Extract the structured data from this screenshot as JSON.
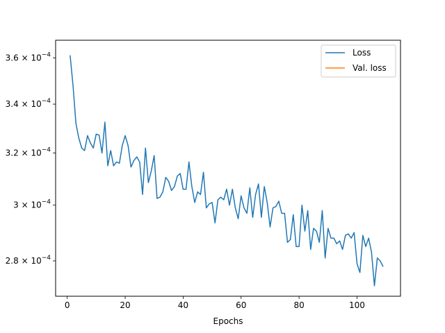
{
  "chart_data": {
    "type": "line",
    "title": "",
    "xlabel": "Epochs",
    "ylabel": "",
    "yscale": "log",
    "xlim": [
      -4,
      115
    ],
    "ylim": [
      0.000268,
      0.000368
    ],
    "x_ticks": [
      0,
      20,
      40,
      60,
      80,
      100
    ],
    "y_ticks": [
      {
        "value": 0.00028,
        "mantissa": "2.8",
        "exponent": "-4"
      },
      {
        "value": 0.0003,
        "mantissa": "3",
        "exponent": "-4"
      },
      {
        "value": 0.00032,
        "mantissa": "3.2",
        "exponent": "-4"
      },
      {
        "value": 0.00034,
        "mantissa": "3.4",
        "exponent": "-4"
      },
      {
        "value": 0.00036,
        "mantissa": "3.6",
        "exponent": "-4"
      }
    ],
    "grid": false,
    "legend_position": "top-right",
    "series": [
      {
        "name": "Loss",
        "color": "#1f77b4",
        "x": [
          1,
          2,
          3,
          4,
          5,
          6,
          7,
          8,
          9,
          10,
          11,
          12,
          13,
          14,
          15,
          16,
          17,
          18,
          19,
          20,
          21,
          22,
          23,
          24,
          25,
          26,
          27,
          28,
          29,
          30,
          31,
          32,
          33,
          34,
          35,
          36,
          37,
          38,
          39,
          40,
          41,
          42,
          43,
          44,
          45,
          46,
          47,
          48,
          49,
          50,
          51,
          52,
          53,
          54,
          55,
          56,
          57,
          58,
          59,
          60,
          61,
          62,
          63,
          64,
          65,
          66,
          67,
          68,
          69,
          70,
          71,
          72,
          73,
          74,
          75,
          76,
          77,
          78,
          79,
          80,
          81,
          82,
          83,
          84,
          85,
          86,
          87,
          88,
          89,
          90,
          91,
          92,
          93,
          94,
          95,
          96,
          97,
          98,
          99,
          100,
          101,
          102,
          103,
          104,
          105,
          106,
          107,
          108,
          109
        ],
        "y": [
          0.0003612,
          0.000348,
          0.000332,
          0.000326,
          0.000322,
          0.000321,
          0.000327,
          0.000324,
          0.000322,
          0.0003276,
          0.0003272,
          0.00032,
          0.0003325,
          0.000315,
          0.000321,
          0.000315,
          0.0003165,
          0.000316,
          0.000323,
          0.000327,
          0.000323,
          0.0003145,
          0.000317,
          0.0003185,
          0.0003165,
          0.000304,
          0.000322,
          0.0003085,
          0.000313,
          0.000319,
          0.0003025,
          0.000303,
          0.000305,
          0.0003105,
          0.000309,
          0.0003055,
          0.000307,
          0.000311,
          0.000312,
          0.000306,
          0.000306,
          0.0003165,
          0.000307,
          0.000301,
          0.000305,
          0.000304,
          0.0003125,
          0.000299,
          0.0003005,
          0.000301,
          0.0002935,
          0.000302,
          0.000303,
          0.000302,
          0.000306,
          0.0003,
          0.000306,
          0.000299,
          0.000295,
          0.0003035,
          0.000299,
          0.000297,
          0.0003065,
          0.0002955,
          0.000304,
          0.000308,
          0.0002955,
          0.000307,
          0.000301,
          0.000292,
          0.000299,
          0.0002995,
          0.0003015,
          0.000297,
          0.000297,
          0.0002865,
          0.0002875,
          0.0002965,
          0.000285,
          0.000285,
          0.0003,
          0.0002905,
          0.000298,
          0.000284,
          0.0002915,
          0.0002905,
          0.0002865,
          0.000298,
          0.000281,
          0.0002915,
          0.000288,
          0.000288,
          0.000286,
          0.000287,
          0.000284,
          0.000289,
          0.0002895,
          0.000288,
          0.00029,
          0.000279,
          0.000276,
          0.000289,
          0.000285,
          0.000288,
          0.000283,
          0.0002715,
          0.000281,
          0.00028,
          0.000278
        ]
      },
      {
        "name": "Val. loss",
        "color": "#ff7f0e",
        "x": [],
        "y": []
      }
    ]
  }
}
